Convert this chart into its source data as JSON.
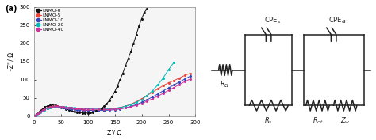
{
  "panel_a": {
    "xlabel": "Z'/ Ω",
    "ylabel": "-Z''/ Ω",
    "xlim": [
      0,
      300
    ],
    "ylim": [
      0,
      300
    ],
    "xticks": [
      0,
      50,
      100,
      150,
      200,
      250,
      300
    ],
    "yticks": [
      0,
      50,
      100,
      150,
      200,
      250,
      300
    ],
    "series": [
      {
        "name": "LNMO-0",
        "color": "#111111",
        "x": [
          3,
          6,
          9,
          12,
          16,
          20,
          25,
          30,
          35,
          40,
          45,
          50,
          55,
          60,
          65,
          70,
          75,
          80,
          85,
          90,
          95,
          100,
          105,
          110,
          115,
          120,
          125,
          130,
          135,
          140,
          145,
          150,
          155,
          160,
          165,
          170,
          175,
          180,
          185,
          190,
          195,
          200,
          205,
          210
        ],
        "y": [
          3,
          7,
          11,
          16,
          20,
          25,
          28,
          30,
          31,
          30,
          28,
          26,
          23,
          20,
          17,
          15,
          13,
          11,
          10,
          9,
          9,
          9,
          10,
          11,
          14,
          17,
          21,
          27,
          34,
          43,
          54,
          67,
          83,
          100,
          118,
          138,
          158,
          178,
          200,
          223,
          248,
          268,
          285,
          295
        ]
      },
      {
        "name": "LNMO-5",
        "color": "#e8453c",
        "x": [
          3,
          6,
          9,
          12,
          16,
          20,
          25,
          30,
          35,
          40,
          45,
          50,
          55,
          60,
          65,
          70,
          75,
          80,
          85,
          90,
          95,
          100,
          110,
          120,
          130,
          140,
          150,
          160,
          170,
          180,
          190,
          200,
          210,
          220,
          230,
          240,
          250,
          260,
          270,
          280,
          290
        ],
        "y": [
          3,
          6,
          9,
          13,
          17,
          21,
          24,
          26,
          27,
          27,
          26,
          25,
          24,
          23,
          22,
          21,
          20,
          19,
          18,
          18,
          17,
          17,
          17,
          17,
          18,
          19,
          21,
          24,
          28,
          33,
          40,
          48,
          57,
          66,
          75,
          84,
          92,
          98,
          105,
          112,
          118
        ]
      },
      {
        "name": "LNMO-10",
        "color": "#3344bb",
        "x": [
          3,
          6,
          9,
          12,
          16,
          20,
          25,
          30,
          35,
          40,
          45,
          50,
          55,
          60,
          65,
          70,
          75,
          80,
          85,
          90,
          95,
          100,
          110,
          120,
          130,
          140,
          150,
          160,
          170,
          180,
          190,
          200,
          210,
          220,
          230,
          240,
          250,
          260,
          270,
          280,
          290
        ],
        "y": [
          3,
          6,
          9,
          12,
          16,
          19,
          22,
          24,
          25,
          25,
          25,
          24,
          23,
          22,
          21,
          20,
          19,
          18,
          18,
          17,
          17,
          16,
          16,
          16,
          16,
          17,
          18,
          20,
          23,
          27,
          32,
          38,
          45,
          53,
          61,
          70,
          78,
          86,
          94,
          102,
          110
        ]
      },
      {
        "name": "LNMO-20",
        "color": "#00bbbb",
        "x": [
          3,
          6,
          9,
          12,
          16,
          20,
          25,
          30,
          35,
          40,
          45,
          50,
          55,
          60,
          65,
          70,
          75,
          80,
          85,
          90,
          95,
          100,
          110,
          120,
          130,
          140,
          150,
          160,
          170,
          180,
          190,
          200,
          210,
          220,
          230,
          240,
          250,
          260
        ],
        "y": [
          3,
          5,
          8,
          11,
          15,
          18,
          21,
          23,
          25,
          26,
          26,
          26,
          25,
          25,
          24,
          24,
          23,
          22,
          22,
          21,
          21,
          21,
          20,
          20,
          20,
          21,
          22,
          24,
          27,
          32,
          38,
          46,
          57,
          70,
          86,
          105,
          128,
          148
        ]
      },
      {
        "name": "LNMO-40",
        "color": "#cc3399",
        "x": [
          3,
          6,
          9,
          12,
          16,
          20,
          25,
          30,
          35,
          40,
          45,
          50,
          55,
          60,
          65,
          70,
          75,
          80,
          85,
          90,
          95,
          100,
          110,
          120,
          130,
          140,
          150,
          160,
          170,
          180,
          190,
          200,
          210,
          220,
          230,
          240,
          250,
          260,
          270,
          280,
          290
        ],
        "y": [
          3,
          6,
          9,
          13,
          17,
          20,
          23,
          25,
          26,
          27,
          27,
          26,
          25,
          24,
          24,
          23,
          22,
          22,
          21,
          20,
          20,
          20,
          19,
          19,
          19,
          19,
          20,
          21,
          23,
          26,
          30,
          35,
          41,
          48,
          55,
          63,
          71,
          79,
          87,
          95,
          102
        ]
      }
    ]
  },
  "panel_b": {
    "line_color": "#222222",
    "font_size": 6.0
  }
}
